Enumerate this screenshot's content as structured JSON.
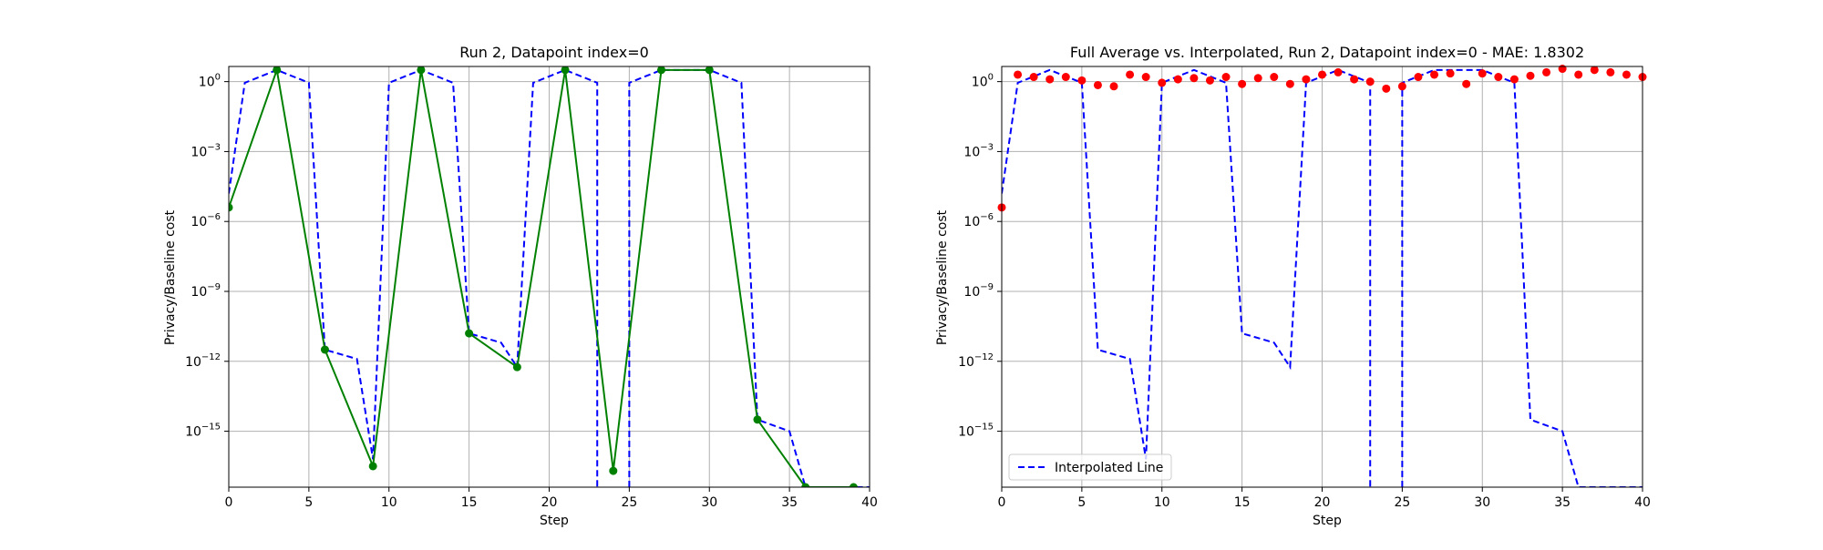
{
  "chart_data": [
    {
      "type": "line",
      "title": "Run 2, Datapoint index=0",
      "xlabel": "Step",
      "ylabel": "Privacy/Baseline cost",
      "xlim": [
        0,
        40
      ],
      "ylim_log10": [
        -17.4,
        0.65
      ],
      "yscale": "log",
      "grid": true,
      "x_ticks": [
        "0",
        "5",
        "10",
        "15",
        "20",
        "25",
        "30",
        "35",
        "40"
      ],
      "y_ticks": [
        {
          "base": "10",
          "exp": "0"
        },
        {
          "base": "10",
          "exp": "−3"
        },
        {
          "base": "10",
          "exp": "−6"
        },
        {
          "base": "10",
          "exp": "−9"
        },
        {
          "base": "10",
          "exp": "−12"
        },
        {
          "base": "10",
          "exp": "−15"
        }
      ],
      "series": [
        {
          "style": "dashed",
          "color": "#0000ff",
          "x": [
            0,
            1,
            3,
            5,
            6,
            8,
            9,
            10,
            12,
            14,
            15,
            17,
            18,
            19,
            21,
            23,
            23,
            25,
            25,
            27,
            30,
            32,
            33,
            35,
            36,
            40
          ],
          "log10_y": [
            -4.8,
            -0.05,
            0.5,
            -0.05,
            -11.5,
            -11.9,
            -16.2,
            -0.05,
            0.5,
            -0.05,
            -10.8,
            -11.2,
            -12.25,
            -0.05,
            0.5,
            -0.05,
            -20,
            -20,
            -0.05,
            0.5,
            0.5,
            -0.05,
            -14.5,
            -15.0,
            -17.4,
            -17.4
          ]
        },
        {
          "style": "solid-markers",
          "color": "#008000",
          "x": [
            0,
            3,
            6,
            9,
            12,
            15,
            18,
            21,
            24,
            27,
            30,
            33,
            36,
            39
          ],
          "log10_y": [
            -5.4,
            0.5,
            -11.5,
            -16.5,
            0.5,
            -10.8,
            -12.25,
            0.5,
            -16.7,
            0.5,
            0.5,
            -14.5,
            -17.4,
            -17.4
          ]
        }
      ]
    },
    {
      "type": "line",
      "title": "Full Average vs. Interpolated, Run 2, Datapoint index=0 - MAE: 1.8302",
      "xlabel": "Step",
      "ylabel": "Privacy/Baseline cost",
      "xlim": [
        0,
        40
      ],
      "ylim_log10": [
        -17.4,
        0.65
      ],
      "yscale": "log",
      "grid": true,
      "legend_position": "lower-left",
      "x_ticks": [
        "0",
        "5",
        "10",
        "15",
        "20",
        "25",
        "30",
        "35",
        "40"
      ],
      "y_ticks": [
        {
          "base": "10",
          "exp": "0"
        },
        {
          "base": "10",
          "exp": "−3"
        },
        {
          "base": "10",
          "exp": "−6"
        },
        {
          "base": "10",
          "exp": "−9"
        },
        {
          "base": "10",
          "exp": "−12"
        },
        {
          "base": "10",
          "exp": "−15"
        }
      ],
      "series": [
        {
          "name": "Interpolated Line",
          "style": "dashed",
          "color": "#0000ff",
          "x": [
            0,
            1,
            3,
            5,
            6,
            8,
            9,
            10,
            12,
            14,
            15,
            17,
            18,
            19,
            21,
            23,
            23,
            25,
            25,
            27,
            30,
            32,
            33,
            35,
            36,
            40
          ],
          "log10_y": [
            -4.8,
            -0.05,
            0.5,
            -0.05,
            -11.5,
            -11.9,
            -16.2,
            -0.05,
            0.5,
            -0.05,
            -10.8,
            -11.2,
            -12.25,
            -0.05,
            0.5,
            -0.05,
            -20,
            -20,
            -0.05,
            0.5,
            0.5,
            -0.05,
            -14.5,
            -15.0,
            -17.4,
            -17.4
          ]
        },
        {
          "style": "scatter",
          "color": "#ff0000",
          "x": [
            0,
            1,
            2,
            3,
            4,
            5,
            6,
            7,
            8,
            9,
            10,
            11,
            12,
            13,
            14,
            15,
            16,
            17,
            18,
            19,
            20,
            21,
            22,
            23,
            24,
            25,
            26,
            27,
            28,
            29,
            30,
            31,
            32,
            33,
            34,
            35,
            36,
            37,
            38,
            39,
            40
          ],
          "log10_y": [
            -5.4,
            0.3,
            0.2,
            0.1,
            0.2,
            0.05,
            -0.15,
            -0.2,
            0.3,
            0.2,
            -0.05,
            0.1,
            0.15,
            0.05,
            0.2,
            -0.1,
            0.15,
            0.2,
            -0.1,
            0.1,
            0.3,
            0.4,
            0.1,
            0.0,
            -0.3,
            -0.2,
            0.2,
            0.3,
            0.35,
            -0.1,
            0.35,
            0.2,
            0.1,
            0.25,
            0.4,
            0.55,
            0.3,
            0.5,
            0.4,
            0.3,
            0.2
          ]
        }
      ]
    }
  ]
}
